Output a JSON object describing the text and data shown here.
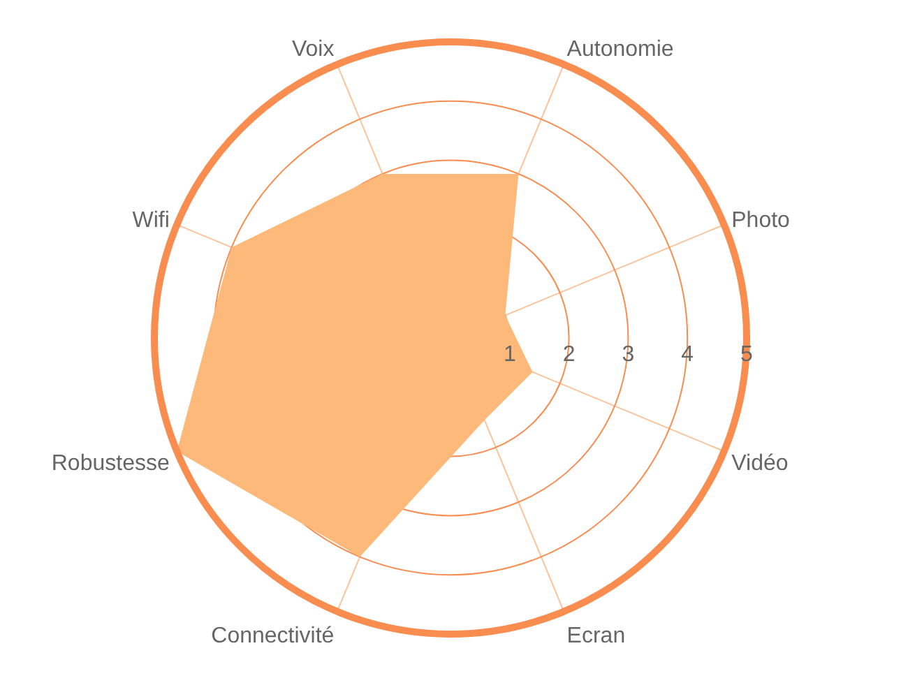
{
  "chart_data": {
    "type": "radar",
    "categories": [
      "Autonomie",
      "Photo",
      "Vidéo",
      "Ecran",
      "Connectivité",
      "Robustesse",
      "Wifi",
      "Voix"
    ],
    "series": [
      {
        "color": "#fdb97a",
        "values": [
          3,
          1,
          1.5,
          1.5,
          4,
          5,
          4,
          3
        ]
      }
    ],
    "ylim": [
      0,
      5
    ],
    "yticks": [
      1,
      2,
      3,
      4,
      5
    ],
    "grid": true
  }
}
